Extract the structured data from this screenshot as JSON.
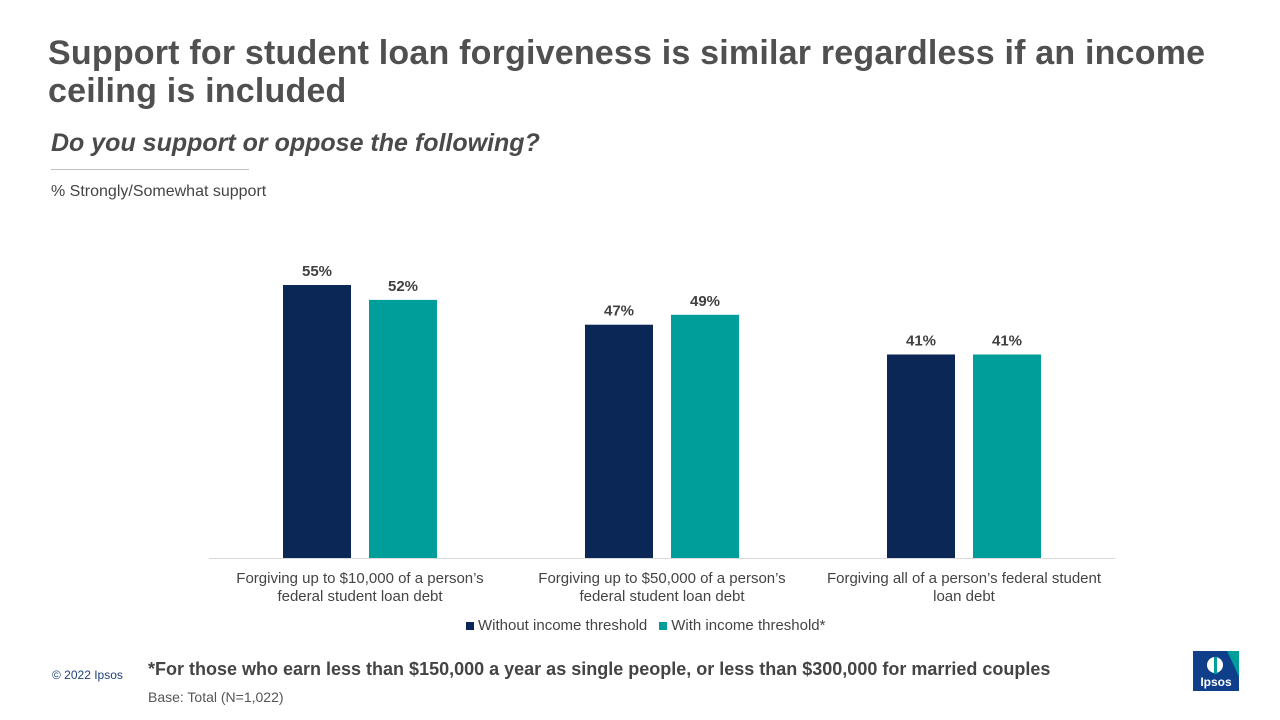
{
  "header": {
    "title": "Support for student loan forgiveness is similar regardless if an income ceiling is included",
    "subtitle": "Do you support or oppose the following?",
    "measure": "% Strongly/Somewhat support"
  },
  "chart_data": {
    "type": "bar",
    "categories": [
      [
        "Forgiving up to $10,000 of a person’s",
        "federal student loan debt"
      ],
      [
        "Forgiving up to $50,000 of a person’s",
        "federal student loan debt"
      ],
      [
        "Forgiving all of a person’s federal student",
        "loan debt"
      ]
    ],
    "series": [
      {
        "name": "Without income threshold",
        "values": [
          55,
          47,
          41
        ],
        "color": "#0b2756"
      },
      {
        "name": "With income threshold*",
        "values": [
          52,
          49,
          41
        ],
        "color": "#009e9a"
      }
    ],
    "value_suffix": "%",
    "ylim": [
      0,
      60
    ],
    "grid": false,
    "legend_position": "bottom"
  },
  "footer": {
    "copyright": "© 2022 Ipsos",
    "footnote": "*For those who earn less than $150,000 a year as single people, or less than $300,000 for married couples",
    "base": "Base: Total (N=1,022)",
    "logo_text": "Ipsos",
    "logo_color": "#009e9a"
  }
}
